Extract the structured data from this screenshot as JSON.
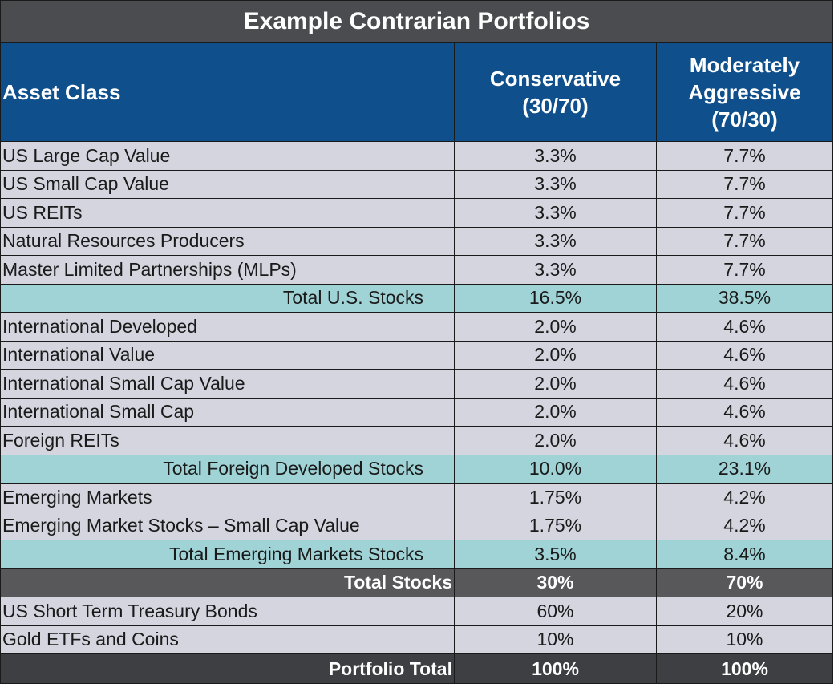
{
  "title": "Example Contrarian Portfolios",
  "headers": {
    "asset_class": "Asset Class",
    "conservative": "Conservative (30/70)",
    "moderately_aggressive": "Moderately Aggressive (70/30)"
  },
  "rows": [
    {
      "type": "asset",
      "label": "US Large Cap Value",
      "conservative": "3.3%",
      "aggressive": "7.7%"
    },
    {
      "type": "asset",
      "label": "US Small Cap Value",
      "conservative": "3.3%",
      "aggressive": "7.7%"
    },
    {
      "type": "asset",
      "label": "US REITs",
      "conservative": "3.3%",
      "aggressive": "7.7%"
    },
    {
      "type": "asset",
      "label": "Natural Resources Producers",
      "conservative": "3.3%",
      "aggressive": "7.7%"
    },
    {
      "type": "asset",
      "label": "Master Limited Partnerships (MLPs)",
      "conservative": "3.3%",
      "aggressive": "7.7%"
    },
    {
      "type": "subtotal",
      "label": "Total U.S. Stocks",
      "conservative": "16.5%",
      "aggressive": "38.5%"
    },
    {
      "type": "asset",
      "label": "International Developed",
      "conservative": "2.0%",
      "aggressive": "4.6%"
    },
    {
      "type": "asset",
      "label": "International Value",
      "conservative": "2.0%",
      "aggressive": "4.6%"
    },
    {
      "type": "asset",
      "label": "International Small Cap Value",
      "conservative": "2.0%",
      "aggressive": "4.6%"
    },
    {
      "type": "asset",
      "label": "International Small Cap",
      "conservative": "2.0%",
      "aggressive": "4.6%"
    },
    {
      "type": "asset",
      "label": "Foreign REITs",
      "conservative": "2.0%",
      "aggressive": "4.6%"
    },
    {
      "type": "subtotal",
      "label": "Total Foreign Developed Stocks",
      "conservative": "10.0%",
      "aggressive": "23.1%"
    },
    {
      "type": "asset",
      "label": "Emerging Markets",
      "conservative": "1.75%",
      "aggressive": "4.2%"
    },
    {
      "type": "asset",
      "label": "Emerging Market Stocks – Small Cap Value",
      "conservative": "1.75%",
      "aggressive": "4.2%"
    },
    {
      "type": "subtotal",
      "label": "Total Emerging Markets Stocks",
      "conservative": "3.5%",
      "aggressive": "8.4%"
    },
    {
      "type": "total",
      "label": "Total Stocks",
      "conservative": "30%",
      "aggressive": "70%"
    },
    {
      "type": "asset",
      "label": "US Short Term Treasury Bonds",
      "conservative": "60%",
      "aggressive": "20%"
    },
    {
      "type": "asset",
      "label": "Gold ETFs and Coins",
      "conservative": "10%",
      "aggressive": "10%"
    },
    {
      "type": "grand",
      "label": "Portfolio Total",
      "conservative": "100%",
      "aggressive": "100%"
    }
  ],
  "colors": {
    "title_bg": "#4a4c4f",
    "header_bg": "#0f4f8c",
    "asset_row_bg": "#d4d5df",
    "subtotal_row_bg": "#9fd3d6",
    "total_row_bg": "#58585b",
    "grand_total_bg": "#3e3f42"
  }
}
